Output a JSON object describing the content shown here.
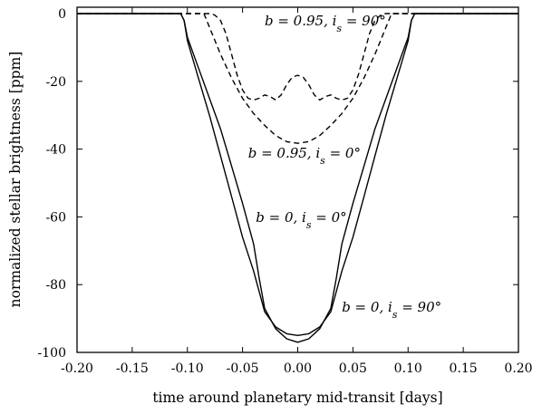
{
  "chart_data": {
    "type": "line",
    "title": "",
    "xlabel": "time around planetary mid-transit [days]",
    "ylabel": "normalized stellar brightness [ppm]",
    "xlim": [
      -0.2,
      0.2
    ],
    "ylim": [
      -100,
      0
    ],
    "grid": false,
    "x_ticks": [
      -0.2,
      -0.15,
      -0.1,
      -0.05,
      0.0,
      0.05,
      0.1,
      0.15,
      0.2
    ],
    "x_tick_labels": [
      "-0.20",
      "-0.15",
      "-0.10",
      "-0.05",
      "0.00",
      "0.05",
      "0.10",
      "0.15",
      "0.20"
    ],
    "y_ticks": [
      0,
      -20,
      -40,
      -60,
      -80,
      -100
    ],
    "y_tick_labels": [
      "0",
      "-20",
      "-40",
      "-60",
      "-80",
      "-100"
    ],
    "series": [
      {
        "style": "solid",
        "x": [
          -0.2,
          -0.106,
          -0.103,
          -0.1,
          -0.09,
          -0.08,
          -0.07,
          -0.06,
          -0.05,
          -0.04,
          -0.035,
          -0.03,
          -0.02,
          -0.01,
          0.0,
          0.01,
          0.02,
          0.03,
          0.035,
          0.04,
          0.05,
          0.06,
          0.07,
          0.08,
          0.09,
          0.1,
          0.103,
          0.106,
          0.2
        ],
        "y": [
          0,
          0,
          -2,
          -7,
          -16,
          -25,
          -34,
          -45,
          -56,
          -68,
          -78,
          -87,
          -93,
          -96,
          -97,
          -96,
          -93,
          -87,
          -78,
          -68,
          -56,
          -45,
          -34,
          -25,
          -16,
          -7,
          -2,
          0,
          0
        ]
      },
      {
        "style": "solid",
        "x": [
          -0.2,
          -0.106,
          -0.103,
          -0.1,
          -0.09,
          -0.08,
          -0.07,
          -0.06,
          -0.05,
          -0.04,
          -0.035,
          -0.03,
          -0.02,
          -0.01,
          0.0,
          0.01,
          0.02,
          0.03,
          0.035,
          0.04,
          0.05,
          0.06,
          0.07,
          0.08,
          0.09,
          0.1,
          0.103,
          0.106,
          0.2
        ],
        "y": [
          0,
          0,
          -2,
          -8,
          -19,
          -30,
          -42,
          -54,
          -66,
          -76,
          -82,
          -88,
          -92.5,
          -94.5,
          -95,
          -94.5,
          -92.5,
          -88,
          -82,
          -76,
          -66,
          -54,
          -42,
          -30,
          -19,
          -8,
          -2,
          0,
          0
        ]
      },
      {
        "style": "dashed",
        "x": [
          -0.2,
          -0.085,
          -0.08,
          -0.07,
          -0.06,
          -0.05,
          -0.04,
          -0.03,
          -0.02,
          -0.01,
          0.0,
          0.01,
          0.02,
          0.03,
          0.04,
          0.05,
          0.06,
          0.07,
          0.08,
          0.085,
          0.2
        ],
        "y": [
          0,
          0,
          -4,
          -12,
          -19,
          -25,
          -29.5,
          -33,
          -36,
          -37.8,
          -38.3,
          -37.8,
          -36,
          -33,
          -29.5,
          -25,
          -19,
          -12,
          -4,
          0,
          0
        ]
      },
      {
        "style": "dashed",
        "x": [
          -0.2,
          -0.078,
          -0.075,
          -0.07,
          -0.065,
          -0.06,
          -0.055,
          -0.05,
          -0.045,
          -0.04,
          -0.035,
          -0.03,
          -0.025,
          -0.02,
          -0.015,
          -0.01,
          -0.005,
          0.0,
          0.005,
          0.01,
          0.015,
          0.02,
          0.025,
          0.03,
          0.035,
          0.04,
          0.045,
          0.05,
          0.055,
          0.06,
          0.065,
          0.07,
          0.075,
          0.078,
          0.2
        ],
        "y": [
          0,
          0,
          -0.5,
          -2,
          -6,
          -12,
          -18,
          -22.5,
          -25,
          -25.5,
          -25,
          -24,
          -24.5,
          -25.5,
          -24,
          -21,
          -18.8,
          -18.2,
          -18.8,
          -21,
          -24,
          -25.5,
          -24.5,
          -24,
          -25,
          -25.5,
          -25,
          -22.5,
          -18,
          -12,
          -6,
          -2,
          -0.5,
          0,
          0
        ]
      }
    ],
    "annotations": [
      {
        "text": "b = 0.95, i_s = 90°",
        "x": -0.03,
        "y": -3.5
      },
      {
        "text": "b = 0.95, i_s = 0°",
        "x": -0.045,
        "y": -42.5
      },
      {
        "text": "b = 0, i_s = 0°",
        "x": -0.038,
        "y": -61.5
      },
      {
        "text": "b = 0, i_s = 90°",
        "x": 0.04,
        "y": -88
      }
    ]
  }
}
